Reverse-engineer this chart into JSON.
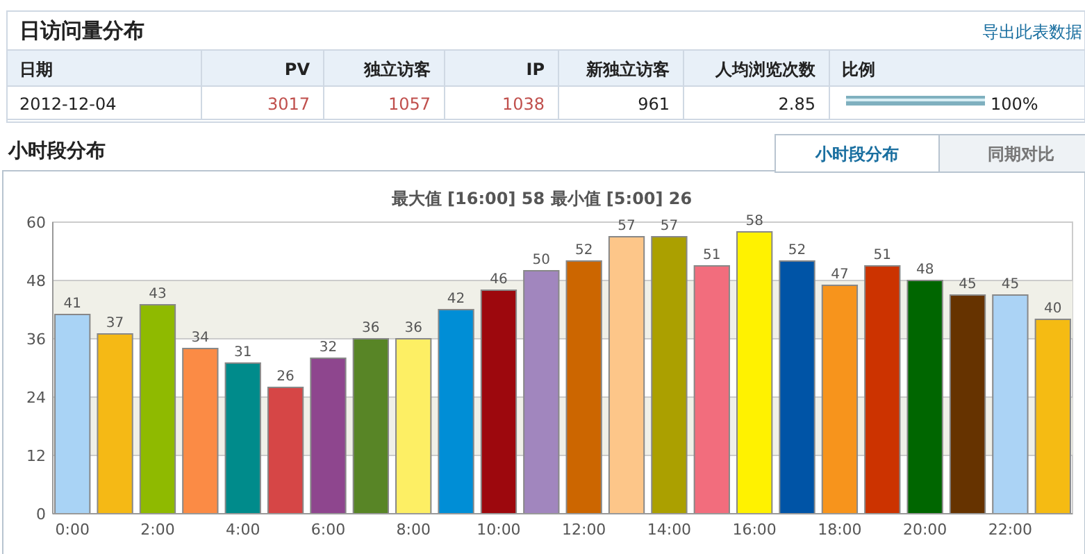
{
  "chart_data": [
    {
      "type": "other",
      "title": "日访问量分布",
      "annotations": [
        "导出此表数据",
        "日期",
        "PV",
        "独立访客",
        "IP",
        "新独立访客",
        "人均浏览次数",
        "比例",
        "2012-12-04",
        "3017",
        "1057",
        "1038",
        "961",
        "2.85",
        "100%"
      ]
    },
    {
      "type": "bar",
      "title": "小时段分布",
      "subtitle": "最大值 [16:00]  58   最小值 [5:00]  26",
      "annotations": [
        "小时段分布",
        "同期对比"
      ],
      "categories": [
        "0:00",
        null,
        "2:00",
        null,
        "4:00",
        null,
        "6:00",
        null,
        "8:00",
        null,
        "10:00",
        null,
        "12:00",
        null,
        "14:00",
        null,
        "16:00",
        null,
        "18:00",
        null,
        "20:00",
        null,
        "22:00",
        null
      ],
      "values": [
        41,
        37,
        43,
        34,
        31,
        26,
        32,
        36,
        36,
        42,
        46,
        50,
        52,
        57,
        57,
        51,
        58,
        52,
        47,
        51,
        48,
        45,
        45,
        40
      ],
      "colors": [
        "#a9d3f5",
        "#f5b915",
        "#8fba00",
        "#fb8b45",
        "#008b8b",
        "#d64646",
        "#8e468e",
        "#588526",
        "#fdef64",
        "#008ed6",
        "#9d080d",
        "#a186be",
        "#cc6600",
        "#fdc689",
        "#aba000",
        "#f26d7d",
        "#fff200",
        "#0054a6",
        "#f7941c",
        "#cc3300",
        "#006600",
        "#663300",
        "#abd3f5",
        "#f5bb13"
      ],
      "ylim": [
        0,
        60
      ],
      "yticks": [
        0,
        12,
        24,
        36,
        48,
        60
      ],
      "grid": "y",
      "data_labels": true,
      "bands": [
        {
          "axis": "y",
          "from": 12,
          "to": 24,
          "color": "#f0f0e8"
        },
        {
          "axis": "y",
          "from": 36,
          "to": 48,
          "color": "#f0f0e8"
        }
      ]
    }
  ]
}
